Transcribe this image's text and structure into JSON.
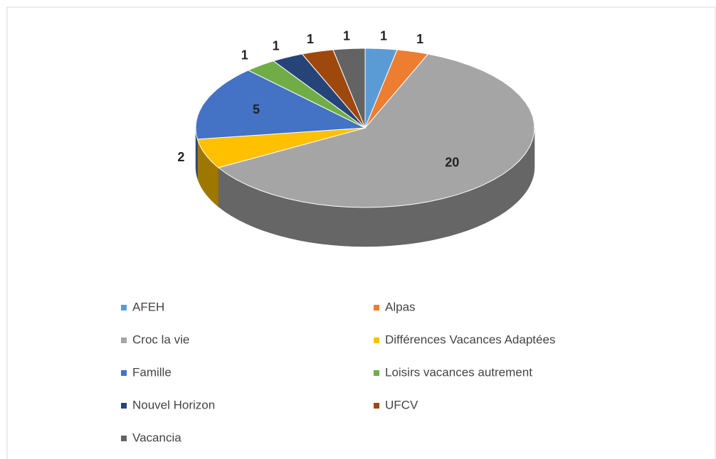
{
  "chart_data": {
    "type": "pie3d",
    "categories": [
      "AFEH",
      "Alpas",
      "Croc la vie",
      "Différences Vacances Adaptées",
      "Famille",
      "Loisirs vacances autrement",
      "Nouvel Horizon",
      "UFCV",
      "Vacancia"
    ],
    "values": [
      1,
      1,
      20,
      2,
      5,
      1,
      1,
      1,
      1
    ],
    "colors": [
      "#5b9bd5",
      "#ed7d31",
      "#a5a5a5",
      "#ffc000",
      "#4472c4",
      "#70ad47",
      "#264478",
      "#9e480e",
      "#636363"
    ],
    "legend": "bottom"
  }
}
